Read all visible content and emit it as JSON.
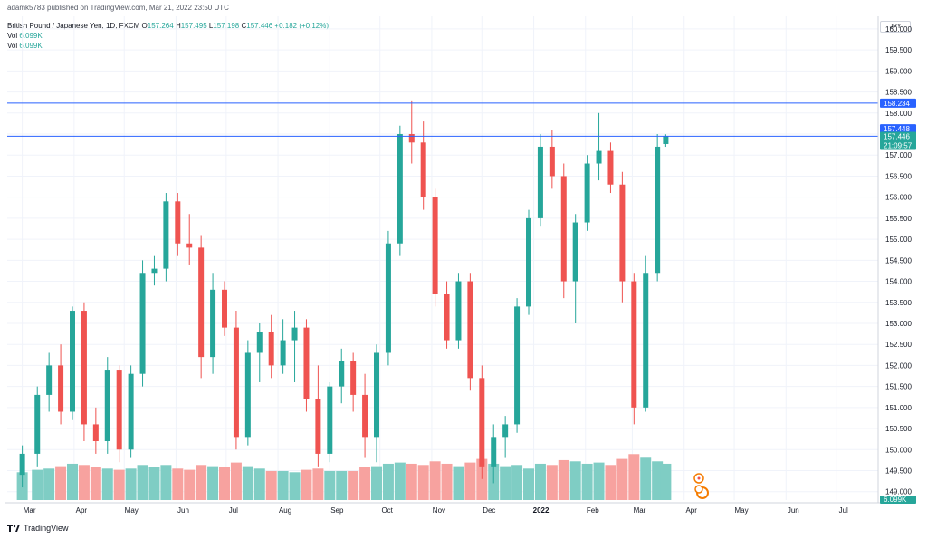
{
  "header": {
    "publish_line": "adamk5783 published on TradingView.com, Mar 21, 2022 23:50 UTC",
    "symbol_line": "British Pound / Japanese Yen, 1D, FXCM",
    "ohlc": {
      "o_label": "O",
      "o": "157.264",
      "h_label": "H",
      "h": "157.495",
      "l_label": "L",
      "l": "157.198",
      "c_label": "C",
      "c": "157.446",
      "chg": "+0.182 (+0.12%)"
    },
    "vol_rows": [
      {
        "label": "Vol",
        "value": "6.099K"
      },
      {
        "label": "Vol",
        "value": "6.099K"
      }
    ]
  },
  "currency_tag": "JPY",
  "footer": {
    "brand": "TradingView"
  },
  "colors": {
    "up": "#26a69a",
    "down": "#ef5350",
    "hline": "#2962ff",
    "vol_up": "#7fcdc4",
    "vol_down": "#f7a29f"
  },
  "price_tags": {
    "hline_upper": "158.234",
    "hline_lower": "157.448",
    "last_price": "157.446",
    "countdown": "21:09:57",
    "volume": "6.099K"
  },
  "chart_data": {
    "type": "candlestick",
    "symbol": "British Pound / Japanese Yen",
    "interval": "1D",
    "y_axis": {
      "min": 148.8,
      "max": 160.3,
      "ticks": [
        "149.000",
        "149.500",
        "150.000",
        "150.500",
        "151.000",
        "151.500",
        "152.000",
        "152.500",
        "153.000",
        "153.500",
        "154.000",
        "154.500",
        "155.000",
        "155.500",
        "156.000",
        "156.500",
        "157.000",
        "157.500",
        "158.000",
        "158.500",
        "159.000",
        "159.500",
        "160.000"
      ]
    },
    "x_axis": {
      "labels": [
        "Mar",
        "Apr",
        "May",
        "Jun",
        "Jul",
        "Aug",
        "Sep",
        "Oct",
        "Nov",
        "Dec",
        "2022",
        "Feb",
        "Mar",
        "Apr",
        "May",
        "Jun",
        "Jul"
      ]
    },
    "horizontal_lines": [
      158.234,
      157.448
    ],
    "series": [
      {
        "date": "2021-03-01",
        "o": 149.4,
        "h": 150.1,
        "l": 149.1,
        "c": 149.9,
        "v": 2.3
      },
      {
        "date": "2021-03-10",
        "o": 149.9,
        "h": 151.5,
        "l": 149.6,
        "c": 151.3,
        "v": 2.5
      },
      {
        "date": "2021-03-17",
        "o": 151.3,
        "h": 152.3,
        "l": 150.9,
        "c": 152.0,
        "v": 2.6
      },
      {
        "date": "2021-03-24",
        "o": 152.0,
        "h": 152.5,
        "l": 150.6,
        "c": 150.9,
        "v": 2.8
      },
      {
        "date": "2021-03-31",
        "o": 150.9,
        "h": 153.4,
        "l": 150.7,
        "c": 153.3,
        "v": 3.0
      },
      {
        "date": "2021-04-07",
        "o": 153.3,
        "h": 153.5,
        "l": 150.2,
        "c": 150.6,
        "v": 2.9
      },
      {
        "date": "2021-04-14",
        "o": 150.6,
        "h": 151.0,
        "l": 149.9,
        "c": 150.2,
        "v": 2.7
      },
      {
        "date": "2021-04-21",
        "o": 150.2,
        "h": 152.2,
        "l": 149.9,
        "c": 151.9,
        "v": 2.6
      },
      {
        "date": "2021-04-28",
        "o": 151.9,
        "h": 152.0,
        "l": 149.7,
        "c": 150.0,
        "v": 2.5
      },
      {
        "date": "2021-05-05",
        "o": 150.0,
        "h": 152.0,
        "l": 149.8,
        "c": 151.8,
        "v": 2.6
      },
      {
        "date": "2021-05-12",
        "o": 151.8,
        "h": 154.5,
        "l": 151.5,
        "c": 154.2,
        "v": 2.9
      },
      {
        "date": "2021-05-19",
        "o": 154.2,
        "h": 154.6,
        "l": 153.9,
        "c": 154.3,
        "v": 2.7
      },
      {
        "date": "2021-05-26",
        "o": 154.3,
        "h": 156.1,
        "l": 154.0,
        "c": 155.9,
        "v": 2.9
      },
      {
        "date": "2021-06-02",
        "o": 155.9,
        "h": 156.1,
        "l": 154.6,
        "c": 154.9,
        "v": 2.6
      },
      {
        "date": "2021-06-09",
        "o": 154.9,
        "h": 155.6,
        "l": 154.4,
        "c": 154.8,
        "v": 2.5
      },
      {
        "date": "2021-06-16",
        "o": 154.8,
        "h": 155.1,
        "l": 151.7,
        "c": 152.2,
        "v": 2.9
      },
      {
        "date": "2021-06-23",
        "o": 152.2,
        "h": 154.2,
        "l": 151.8,
        "c": 153.8,
        "v": 2.8
      },
      {
        "date": "2021-06-30",
        "o": 153.8,
        "h": 154.0,
        "l": 152.7,
        "c": 152.9,
        "v": 2.7
      },
      {
        "date": "2021-07-07",
        "o": 152.9,
        "h": 153.3,
        "l": 150.0,
        "c": 150.3,
        "v": 3.1
      },
      {
        "date": "2021-07-14",
        "o": 150.3,
        "h": 152.6,
        "l": 150.1,
        "c": 152.3,
        "v": 2.8
      },
      {
        "date": "2021-07-21",
        "o": 152.3,
        "h": 153.0,
        "l": 151.6,
        "c": 152.8,
        "v": 2.6
      },
      {
        "date": "2021-07-28",
        "o": 152.8,
        "h": 153.2,
        "l": 151.7,
        "c": 152.0,
        "v": 2.4
      },
      {
        "date": "2021-08-04",
        "o": 152.0,
        "h": 153.1,
        "l": 151.8,
        "c": 152.6,
        "v": 2.4
      },
      {
        "date": "2021-08-11",
        "o": 152.6,
        "h": 153.3,
        "l": 151.6,
        "c": 152.9,
        "v": 2.3
      },
      {
        "date": "2021-08-18",
        "o": 152.9,
        "h": 153.1,
        "l": 150.9,
        "c": 151.2,
        "v": 2.5
      },
      {
        "date": "2021-08-25",
        "o": 151.2,
        "h": 152.0,
        "l": 149.6,
        "c": 149.9,
        "v": 2.6
      },
      {
        "date": "2021-09-01",
        "o": 149.9,
        "h": 151.6,
        "l": 149.7,
        "c": 151.5,
        "v": 2.4
      },
      {
        "date": "2021-09-08",
        "o": 151.5,
        "h": 152.4,
        "l": 151.1,
        "c": 152.1,
        "v": 2.4
      },
      {
        "date": "2021-09-15",
        "o": 152.1,
        "h": 152.3,
        "l": 150.9,
        "c": 151.3,
        "v": 2.4
      },
      {
        "date": "2021-09-22",
        "o": 151.3,
        "h": 151.8,
        "l": 149.8,
        "c": 150.3,
        "v": 2.7
      },
      {
        "date": "2021-09-29",
        "o": 150.3,
        "h": 152.5,
        "l": 149.7,
        "c": 152.3,
        "v": 2.8
      },
      {
        "date": "2021-10-06",
        "o": 152.3,
        "h": 155.2,
        "l": 152.0,
        "c": 154.9,
        "v": 3.0
      },
      {
        "date": "2021-10-13",
        "o": 154.9,
        "h": 157.7,
        "l": 154.6,
        "c": 157.5,
        "v": 3.1
      },
      {
        "date": "2021-10-20",
        "o": 157.5,
        "h": 158.3,
        "l": 156.8,
        "c": 157.3,
        "v": 3.0
      },
      {
        "date": "2021-10-27",
        "o": 157.3,
        "h": 157.8,
        "l": 155.7,
        "c": 156.0,
        "v": 2.9
      },
      {
        "date": "2021-11-03",
        "o": 156.0,
        "h": 156.2,
        "l": 153.4,
        "c": 153.7,
        "v": 3.2
      },
      {
        "date": "2021-11-10",
        "o": 153.7,
        "h": 154.0,
        "l": 152.4,
        "c": 152.6,
        "v": 3.0
      },
      {
        "date": "2021-11-17",
        "o": 152.6,
        "h": 154.2,
        "l": 152.4,
        "c": 154.0,
        "v": 2.8
      },
      {
        "date": "2021-11-24",
        "o": 154.0,
        "h": 154.2,
        "l": 151.4,
        "c": 151.7,
        "v": 3.1
      },
      {
        "date": "2021-12-01",
        "o": 151.7,
        "h": 152.0,
        "l": 149.3,
        "c": 149.6,
        "v": 3.4
      },
      {
        "date": "2021-12-08",
        "o": 149.6,
        "h": 150.6,
        "l": 149.2,
        "c": 150.3,
        "v": 3.0
      },
      {
        "date": "2021-12-15",
        "o": 150.3,
        "h": 150.8,
        "l": 149.8,
        "c": 150.6,
        "v": 2.8
      },
      {
        "date": "2021-12-22",
        "o": 150.6,
        "h": 153.6,
        "l": 150.4,
        "c": 153.4,
        "v": 2.9
      },
      {
        "date": "2021-12-29",
        "o": 153.4,
        "h": 155.7,
        "l": 153.2,
        "c": 155.5,
        "v": 2.6
      },
      {
        "date": "2022-01-05",
        "o": 155.5,
        "h": 157.5,
        "l": 155.3,
        "c": 157.2,
        "v": 3.0
      },
      {
        "date": "2022-01-12",
        "o": 157.2,
        "h": 157.6,
        "l": 156.2,
        "c": 156.5,
        "v": 2.9
      },
      {
        "date": "2022-01-19",
        "o": 156.5,
        "h": 156.8,
        "l": 153.6,
        "c": 154.0,
        "v": 3.3
      },
      {
        "date": "2022-01-26",
        "o": 154.0,
        "h": 155.6,
        "l": 153.0,
        "c": 155.4,
        "v": 3.2
      },
      {
        "date": "2022-02-02",
        "o": 155.4,
        "h": 157.0,
        "l": 155.2,
        "c": 156.8,
        "v": 3.0
      },
      {
        "date": "2022-02-09",
        "o": 156.8,
        "h": 158.0,
        "l": 156.4,
        "c": 157.1,
        "v": 3.1
      },
      {
        "date": "2022-02-16",
        "o": 157.1,
        "h": 157.3,
        "l": 156.1,
        "c": 156.3,
        "v": 2.9
      },
      {
        "date": "2022-02-23",
        "o": 156.3,
        "h": 156.6,
        "l": 153.5,
        "c": 154.0,
        "v": 3.4
      },
      {
        "date": "2022-03-02",
        "o": 154.0,
        "h": 154.2,
        "l": 150.6,
        "c": 151.0,
        "v": 3.8
      },
      {
        "date": "2022-03-09",
        "o": 151.0,
        "h": 154.6,
        "l": 150.9,
        "c": 154.2,
        "v": 3.5
      },
      {
        "date": "2022-03-16",
        "o": 154.2,
        "h": 157.5,
        "l": 154.0,
        "c": 157.2,
        "v": 3.2
      },
      {
        "date": "2022-03-21",
        "o": 157.264,
        "h": 157.495,
        "l": 157.198,
        "c": 157.446,
        "v": 3.0
      }
    ]
  }
}
